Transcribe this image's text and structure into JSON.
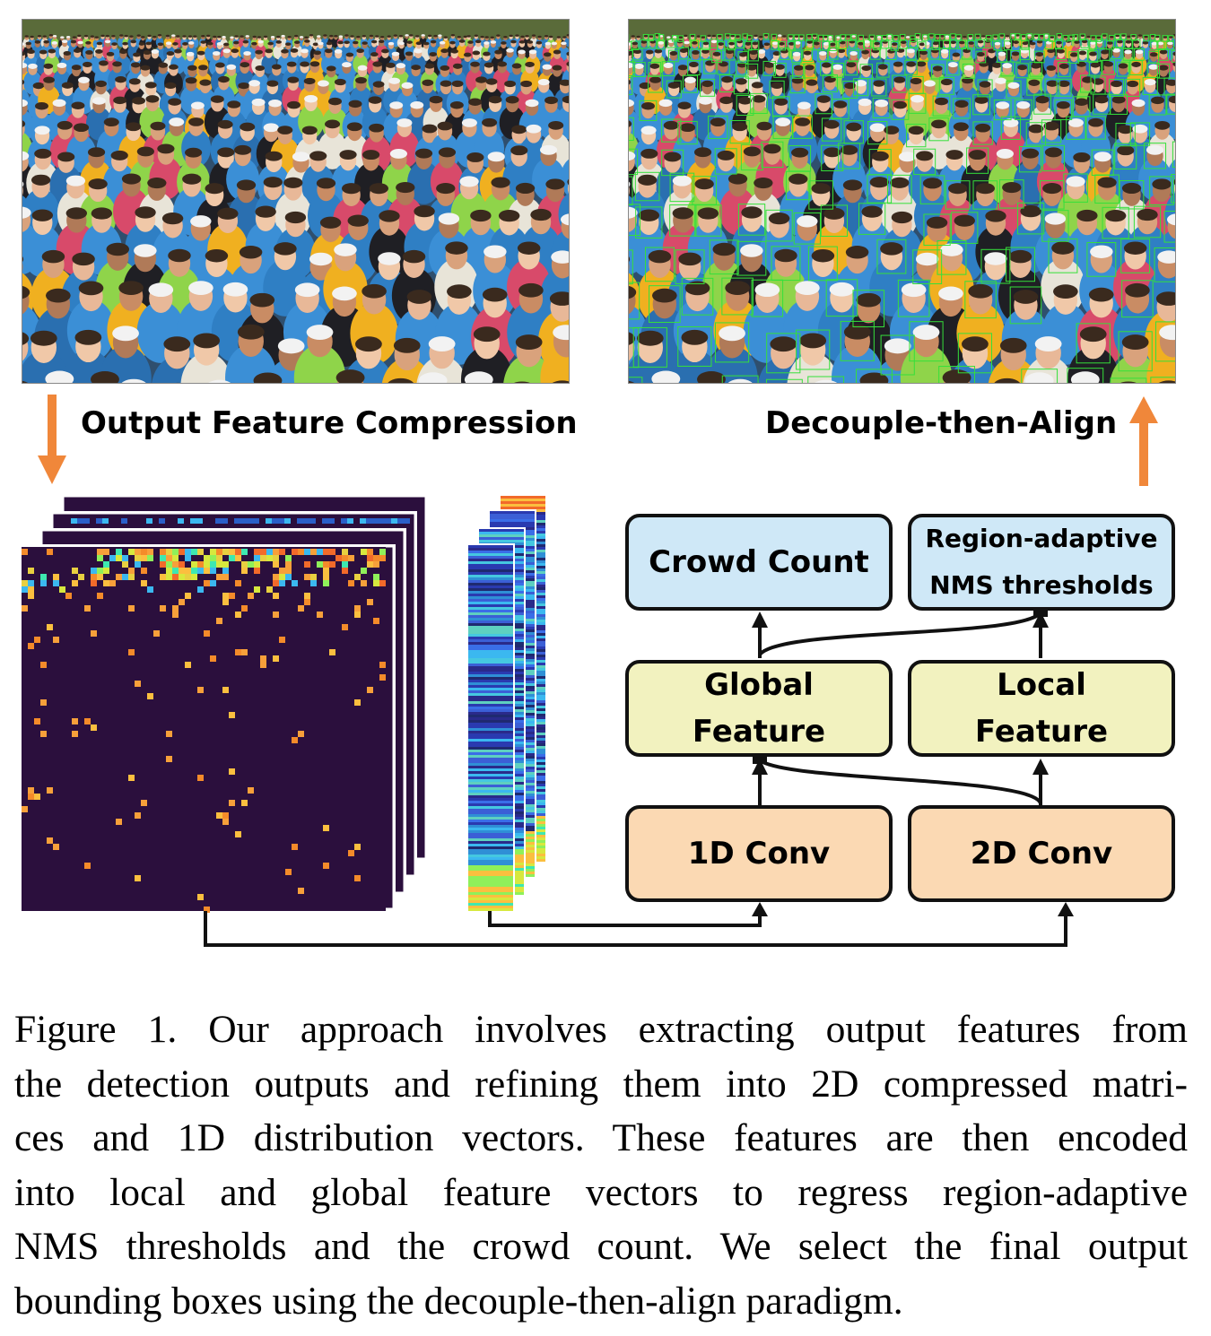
{
  "labels": {
    "left_step": "Output Feature Compression",
    "right_step": "Decouple-then-Align"
  },
  "boxes": {
    "crowd_count": "Crowd Count",
    "nms_line1": "Region-adaptive",
    "nms_line2": "NMS thresholds",
    "global_line1": "Global",
    "global_line2": "Feature",
    "local_line1": "Local",
    "local_line2": "Feature",
    "conv1d": "1D Conv",
    "conv2d": "2D Conv"
  },
  "caption_lines": [
    "Figure 1.  Our approach involves extracting output features from",
    "the detection outputs and refining them into 2D compressed matri-",
    "ces and 1D distribution vectors.  These features are then encoded",
    "into local and global feature vectors to regress region-adaptive",
    "NMS thresholds and the crowd count.  We select the final output",
    "bounding boxes using the decouple-then-align paradigm."
  ],
  "colors": {
    "arrow_orange": "#f0873a",
    "box_blue": "#cfe8f7",
    "box_yellow": "#f2f2bf",
    "box_orange": "#fbd9b3",
    "heatmap_bg": "#2b0f3d",
    "detection_box": "#35e03a"
  }
}
